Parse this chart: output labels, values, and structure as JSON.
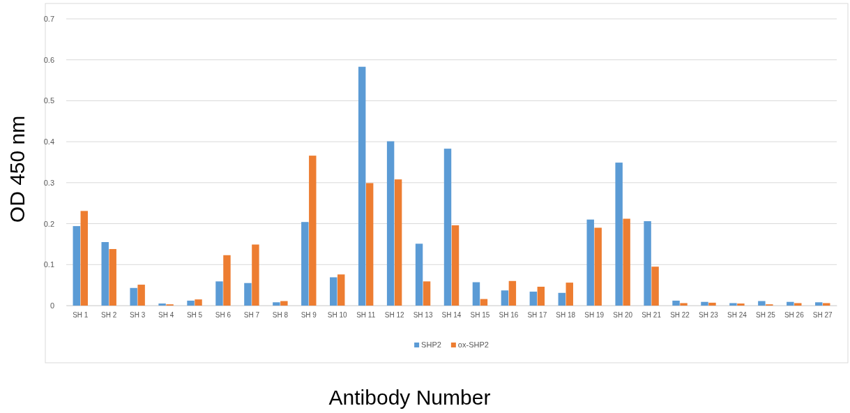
{
  "chart_data": {
    "type": "bar",
    "xlabel": "Antibody Number",
    "ylabel": "OD 450 nm",
    "categories": [
      "SH 1",
      "SH 2",
      "SH 3",
      "SH 4",
      "SH 5",
      "SH 6",
      "SH 7",
      "SH 8",
      "SH 9",
      "SH 10",
      "SH 11",
      "SH 12",
      "SH 13",
      "SH 14",
      "SH 15",
      "SH 16",
      "SH 17",
      "SH 18",
      "SH 19",
      "SH 20",
      "SH 21",
      "SH 22",
      "SH 23",
      "SH 24",
      "SH 25",
      "SH 26",
      "SH 27"
    ],
    "series": [
      {
        "name": "SHP2",
        "color": "#5b9bd5",
        "values": [
          0.194,
          0.155,
          0.043,
          0.005,
          0.012,
          0.059,
          0.055,
          0.008,
          0.204,
          0.069,
          0.583,
          0.401,
          0.151,
          0.383,
          0.057,
          0.037,
          0.034,
          0.031,
          0.21,
          0.349,
          0.206,
          0.012,
          0.009,
          0.006,
          0.011,
          0.009,
          0.008
        ]
      },
      {
        "name": "ox-SHP2",
        "color": "#ed7d31",
        "values": [
          0.231,
          0.138,
          0.051,
          0.003,
          0.015,
          0.123,
          0.149,
          0.011,
          0.366,
          0.076,
          0.299,
          0.308,
          0.059,
          0.196,
          0.016,
          0.06,
          0.046,
          0.056,
          0.19,
          0.212,
          0.095,
          0.006,
          0.007,
          0.005,
          0.003,
          0.006,
          0.006
        ]
      }
    ],
    "ylim": [
      0,
      0.7
    ],
    "yticks": [
      0,
      0.1,
      0.2,
      0.3,
      0.4,
      0.5,
      0.6,
      0.7
    ],
    "grid": "y",
    "legend": "bottom"
  }
}
